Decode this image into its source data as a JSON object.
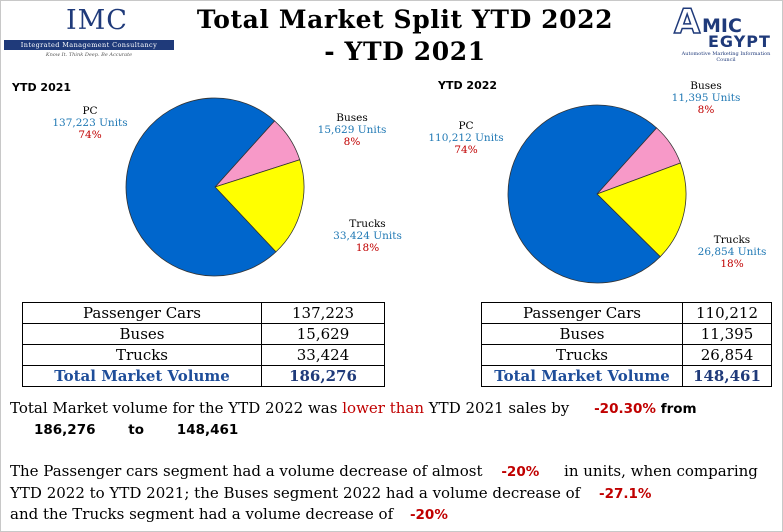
{
  "header": {
    "title_line1": "Total Market Split YTD 2022",
    "title_line2": "- YTD 2021",
    "imc_logo": {
      "name": "IMC",
      "subtitle": "Integrated Management Consultancy",
      "tagline": "Know It. Think Deep. Be Accurate"
    },
    "amic_logo": {
      "letter": "A",
      "mic": "MIC",
      "country": "EGYPT",
      "subtitle": "Automotive Marketing Information Council"
    }
  },
  "colors": {
    "pc": "#0066cc",
    "buses": "#f799c8",
    "trucks": "#ffff00",
    "title_blue": "#1f3a7a",
    "emphasis_red": "#c00000",
    "label_blue": "#1f78b4"
  },
  "chart_data": [
    {
      "type": "pie",
      "title": "YTD 2021",
      "slices": [
        {
          "name": "PC",
          "units_text": "137,223 Units",
          "value": 137223,
          "percent_text": "74%"
        },
        {
          "name": "Buses",
          "units_text": "15,629 Units",
          "value": 15629,
          "percent_text": "8%"
        },
        {
          "name": "Trucks",
          "units_text": "33,424 Units",
          "value": 33424,
          "percent_text": "18%"
        }
      ]
    },
    {
      "type": "pie",
      "title": "YTD 2022",
      "slices": [
        {
          "name": "PC",
          "units_text": "110,212 Units",
          "value": 110212,
          "percent_text": "74%"
        },
        {
          "name": "Buses",
          "units_text": "11,395 Units",
          "value": 11395,
          "percent_text": "8%"
        },
        {
          "name": "Trucks",
          "units_text": "26,854 Units",
          "value": 26854,
          "percent_text": "18%"
        }
      ]
    },
    {
      "type": "table",
      "rows": [
        {
          "label": "Passenger Cars",
          "value": "137,223"
        },
        {
          "label": "Buses",
          "value": "15,629"
        },
        {
          "label": "Trucks",
          "value": "33,424"
        },
        {
          "label": "Total Market Volume",
          "value": "186,276"
        }
      ]
    },
    {
      "type": "table",
      "rows": [
        {
          "label": "Passenger Cars",
          "value": "110,212"
        },
        {
          "label": "Buses",
          "value": "11,395"
        },
        {
          "label": "Trucks",
          "value": "26,854"
        },
        {
          "label": "Total Market Volume",
          "value": "148,461"
        }
      ]
    }
  ],
  "summary": {
    "p1_a": "Total Market volume for the YTD 2022 was ",
    "p1_lower": "lower than",
    "p1_b": " YTD 2021 sales by",
    "p1_pct": "-20.30%",
    "p1_from": "from",
    "p1_num1": "186,276",
    "p1_to": "to",
    "p1_num2": "148,461",
    "p2_a": "The Passenger cars segment had a volume decrease of almost",
    "p2_pct": "-20%",
    "p2_b": "in units, when comparing",
    "p3_a": "YTD 2022 to YTD 2021; the Buses segment 2022  had a volume decrease of",
    "p3_pct": "-27.1%",
    "p4_a": " and the Trucks segment had a volume decrease of",
    "p4_pct": "-20%"
  }
}
